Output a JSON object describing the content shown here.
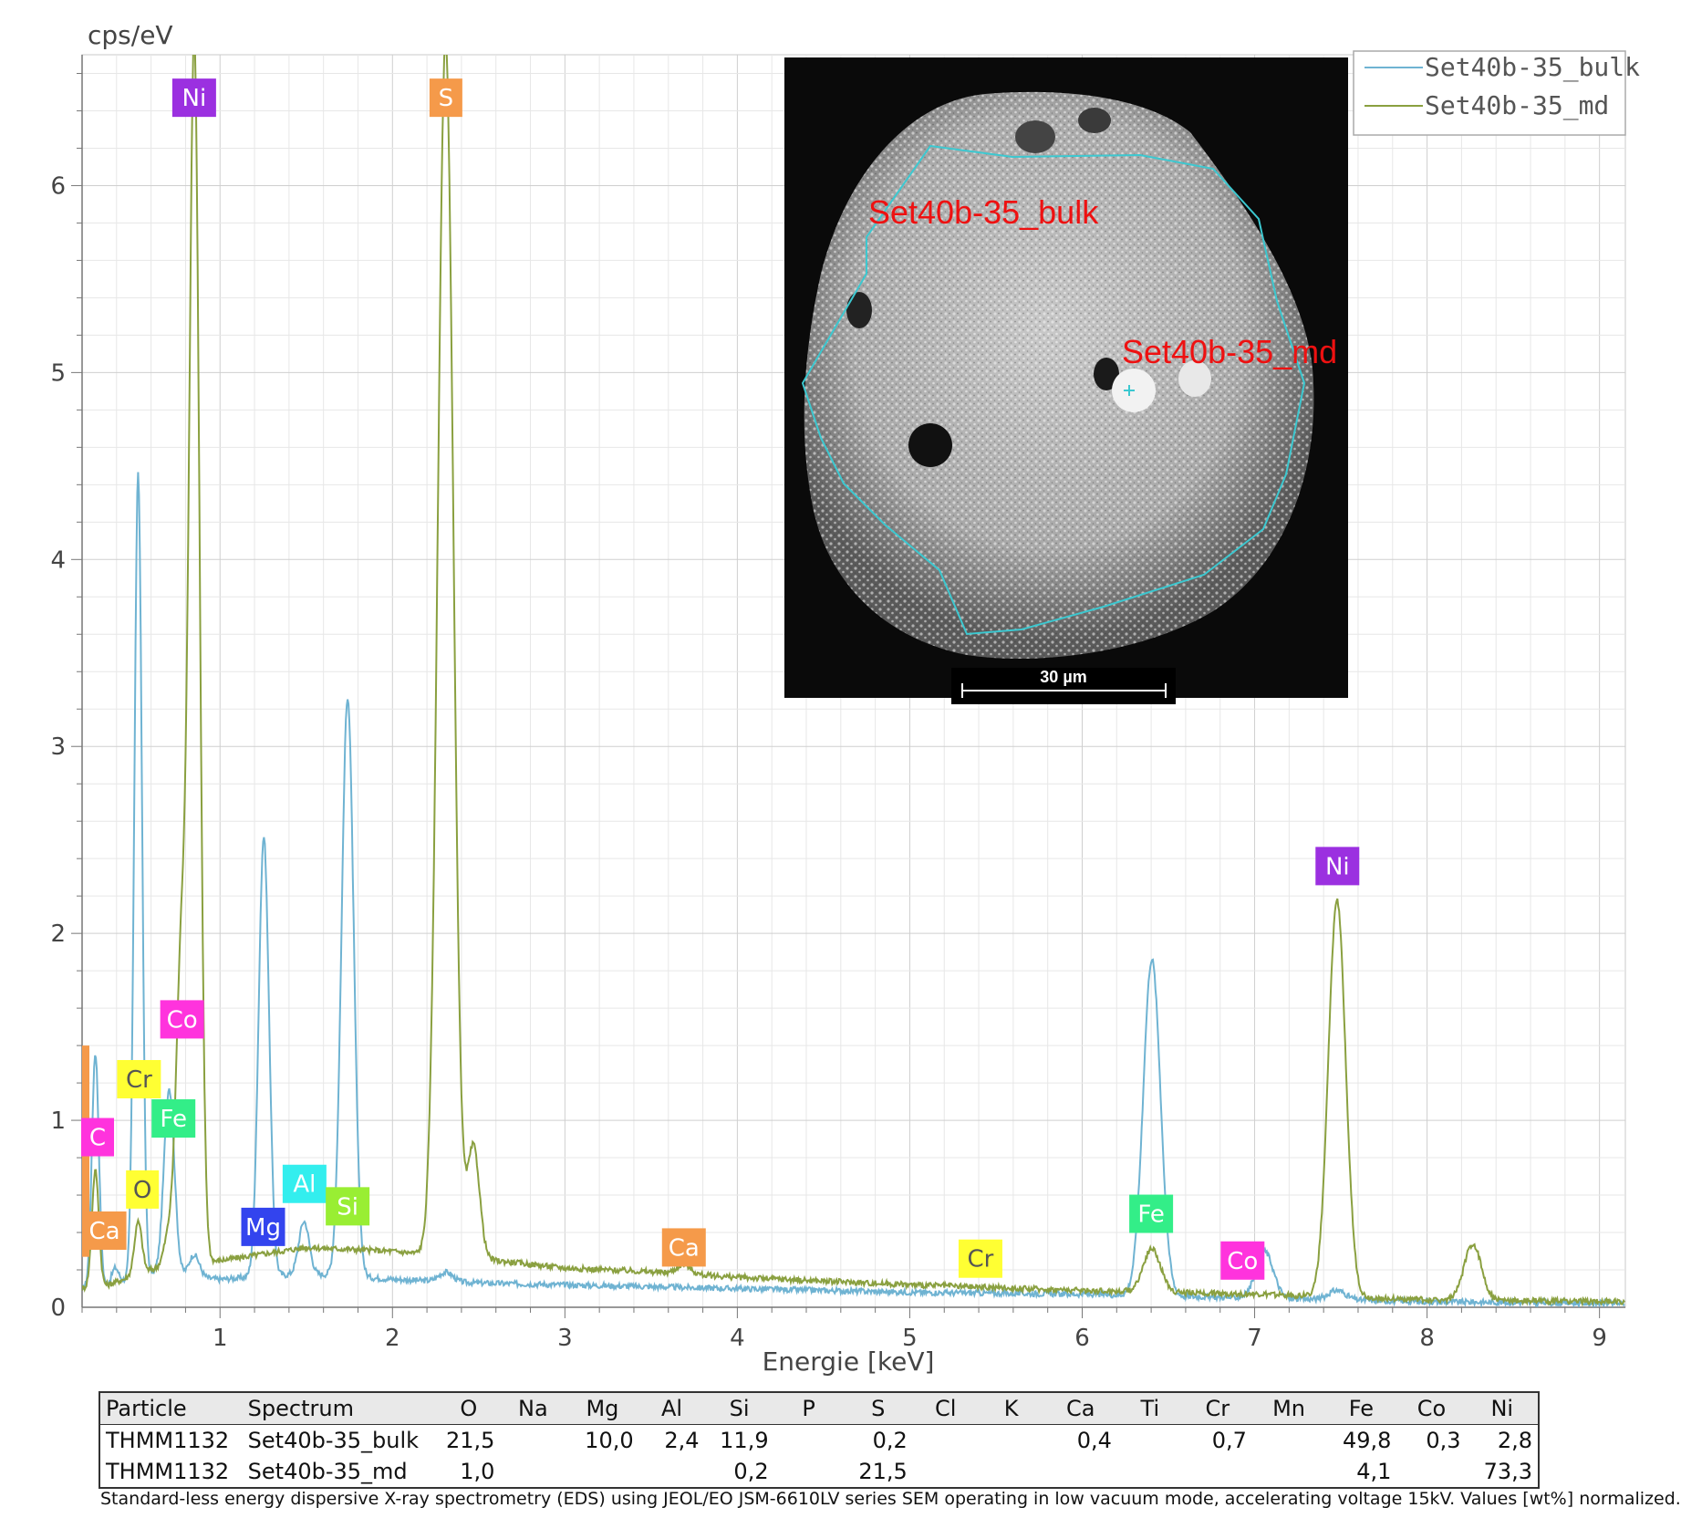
{
  "chart_data": {
    "type": "line",
    "ylabel": "cps/eV",
    "xlabel": "Energie [keV]",
    "xlim": [
      0.2,
      9.15
    ],
    "ylim": [
      0,
      6.7
    ],
    "x_ticks": [
      1,
      2,
      3,
      4,
      5,
      6,
      7,
      8,
      9
    ],
    "y_ticks": [
      0,
      1,
      2,
      3,
      4,
      5,
      6
    ],
    "grid": true,
    "legend_position": "top-right",
    "series": [
      {
        "name": "Set40b-35_bulk",
        "color": "#6fb3d2",
        "baseline": [
          [
            0.2,
            0.1
          ],
          [
            0.35,
            0.12
          ],
          [
            0.6,
            0.18
          ],
          [
            1.0,
            0.15
          ],
          [
            1.5,
            0.18
          ],
          [
            2.0,
            0.15
          ],
          [
            2.5,
            0.13
          ],
          [
            3.0,
            0.12
          ],
          [
            3.5,
            0.11
          ],
          [
            4.0,
            0.1
          ],
          [
            5.0,
            0.08
          ],
          [
            6.0,
            0.07
          ],
          [
            7.0,
            0.05
          ],
          [
            8.0,
            0.03
          ],
          [
            9.15,
            0.02
          ]
        ],
        "peaks": [
          [
            0.277,
            1.25,
            0.02
          ],
          [
            0.392,
            0.08,
            0.02
          ],
          [
            0.525,
            4.3,
            0.022
          ],
          [
            0.705,
            1.0,
            0.03
          ],
          [
            0.85,
            0.12,
            0.03
          ],
          [
            1.254,
            2.35,
            0.03
          ],
          [
            1.487,
            0.28,
            0.03
          ],
          [
            1.74,
            3.1,
            0.035
          ],
          [
            2.31,
            0.05,
            0.04
          ],
          [
            6.404,
            1.8,
            0.05
          ],
          [
            7.058,
            0.25,
            0.05
          ],
          [
            7.478,
            0.05,
            0.05
          ]
        ]
      },
      {
        "name": "Set40b-35_md",
        "color": "#8aa040",
        "baseline": [
          [
            0.2,
            0.1
          ],
          [
            0.35,
            0.12
          ],
          [
            0.6,
            0.2
          ],
          [
            1.0,
            0.25
          ],
          [
            1.5,
            0.32
          ],
          [
            2.0,
            0.3
          ],
          [
            2.6,
            0.25
          ],
          [
            3.0,
            0.21
          ],
          [
            3.5,
            0.19
          ],
          [
            4.0,
            0.16
          ],
          [
            5.0,
            0.12
          ],
          [
            6.0,
            0.09
          ],
          [
            7.0,
            0.07
          ],
          [
            8.0,
            0.04
          ],
          [
            9.15,
            0.03
          ]
        ],
        "peaks": [
          [
            0.277,
            0.62,
            0.02
          ],
          [
            0.525,
            0.28,
            0.022
          ],
          [
            0.705,
            0.18,
            0.03
          ],
          [
            0.776,
            1.65,
            0.03
          ],
          [
            0.851,
            6.5,
            0.03
          ],
          [
            2.308,
            6.5,
            0.045
          ],
          [
            2.47,
            0.6,
            0.035
          ],
          [
            3.69,
            0.05,
            0.04
          ],
          [
            6.404,
            0.23,
            0.05
          ],
          [
            7.478,
            2.12,
            0.05
          ],
          [
            8.265,
            0.3,
            0.05
          ]
        ]
      }
    ],
    "element_markers": [
      {
        "label": "Ni",
        "bg": "#9b30e0",
        "fg": "#ffffff",
        "x": 0.85,
        "y": 6.47
      },
      {
        "label": "S",
        "bg": "#f59a4a",
        "fg": "#ffffff",
        "x": 2.31,
        "y": 6.47
      },
      {
        "label": "Co",
        "bg": "#ff33dd",
        "fg": "#ffffff",
        "x": 0.78,
        "y": 1.54
      },
      {
        "label": "Cr",
        "bg": "#ffff33",
        "fg": "#555555",
        "x": 0.53,
        "y": 1.22
      },
      {
        "label": "Fe",
        "bg": "#33ee88",
        "fg": "#ffffff",
        "x": 0.73,
        "y": 1.01
      },
      {
        "label": "C",
        "bg": "#ff33dd",
        "fg": "#ffffff",
        "x": 0.29,
        "y": 0.91
      },
      {
        "label": "O",
        "bg": "#ffff33",
        "fg": "#555555",
        "x": 0.55,
        "y": 0.63
      },
      {
        "label": "Ca",
        "bg": "#f59a4a",
        "fg": "#ffffff",
        "x": 0.33,
        "y": 0.41
      },
      {
        "label": "Mg",
        "bg": "#3344ee",
        "fg": "#ffffff",
        "x": 1.25,
        "y": 0.43
      },
      {
        "label": "Al",
        "bg": "#33eeee",
        "fg": "#ffffff",
        "x": 1.49,
        "y": 0.66
      },
      {
        "label": "Si",
        "bg": "#99ee33",
        "fg": "#ffffff",
        "x": 1.74,
        "y": 0.54
      },
      {
        "label": "Ca",
        "bg": "#f59a4a",
        "fg": "#ffffff",
        "x": 3.69,
        "y": 0.32
      },
      {
        "label": "Cr",
        "bg": "#ffff33",
        "fg": "#555555",
        "x": 5.41,
        "y": 0.26
      },
      {
        "label": "Fe",
        "bg": "#33ee88",
        "fg": "#ffffff",
        "x": 6.4,
        "y": 0.5
      },
      {
        "label": "Co",
        "bg": "#ff33dd",
        "fg": "#ffffff",
        "x": 6.93,
        "y": 0.25
      },
      {
        "label": "Ni",
        "bg": "#9b30e0",
        "fg": "#ffffff",
        "x": 7.48,
        "y": 2.36
      }
    ],
    "edge_marker_color": "#f59a4a",
    "inset": {
      "labels": [
        "Set40b-35_bulk",
        "Set40b-35_md"
      ],
      "label_color": "#ee1111",
      "scale_bar_label": "30 µm",
      "outline_color": "#3cc8d0"
    }
  },
  "table": {
    "headers": [
      "Particle",
      "Spectrum",
      "O",
      "Na",
      "Mg",
      "Al",
      "Si",
      "P",
      "S",
      "Cl",
      "K",
      "Ca",
      "Ti",
      "Cr",
      "Mn",
      "Fe",
      "Co",
      "Ni"
    ],
    "rows": [
      [
        "THMM1132",
        "Set40b-35_bulk",
        "21,5",
        "",
        "10,0",
        "2,4",
        "11,9",
        "",
        "0,2",
        "",
        "",
        "0,4",
        "",
        "0,7",
        "",
        "49,8",
        "0,3",
        "2,8"
      ],
      [
        "THMM1132",
        "Set40b-35_md",
        "1,0",
        "",
        "",
        "",
        "0,2",
        "",
        "21,5",
        "",
        "",
        "",
        "",
        "",
        "",
        "4,1",
        "",
        "73,3"
      ]
    ]
  },
  "footnote": "Standard-less energy dispersive X-ray spectrometry (EDS) using JEOL/EO JSM-6610LV series SEM operating in low vacuum mode, accelerating voltage 15kV. Values [wt%] normalized."
}
